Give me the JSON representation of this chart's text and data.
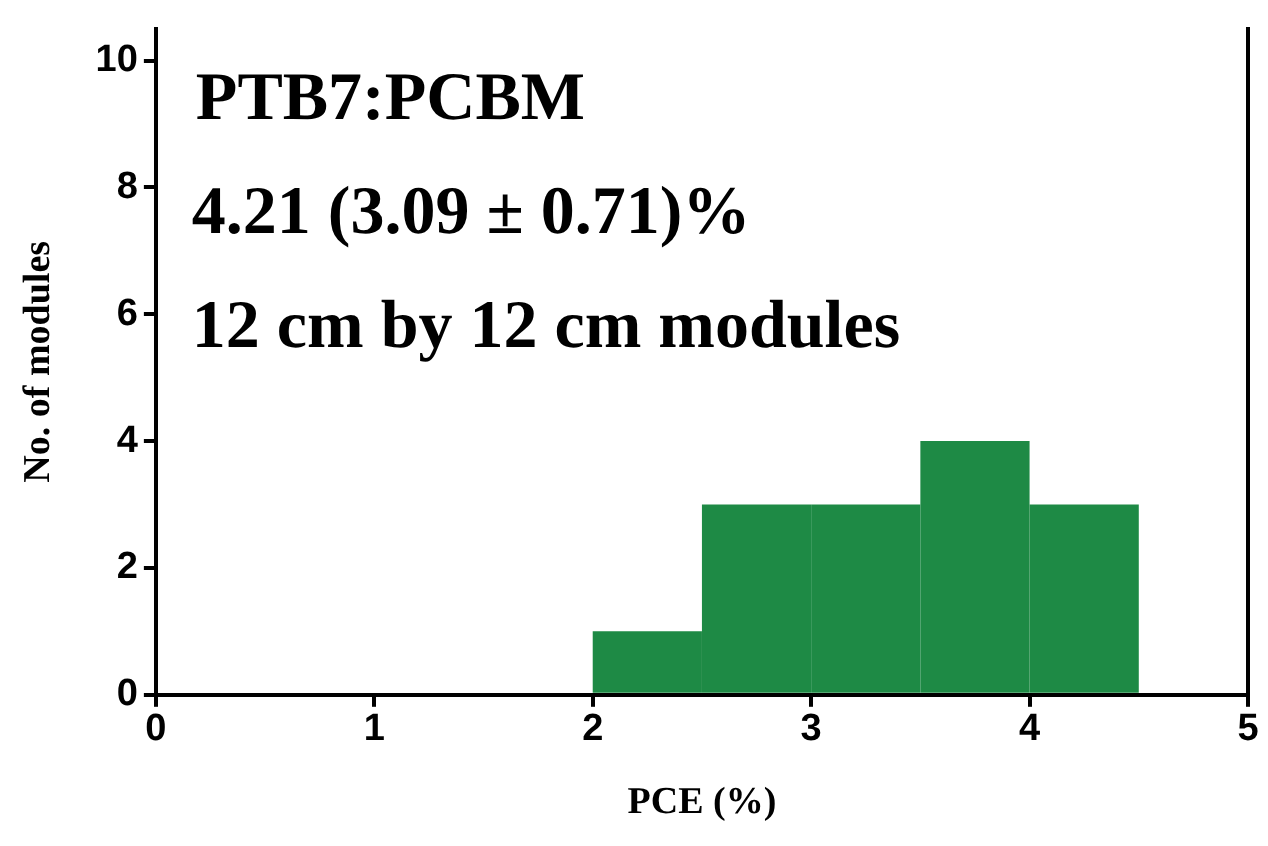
{
  "chart_data": {
    "type": "histogram",
    "xlabel": "PCE (%)",
    "ylabel": "No. of modules",
    "bins": [
      2,
      2.5,
      3,
      3.5,
      4,
      4.5
    ],
    "values": [
      1,
      3,
      3,
      4,
      3
    ],
    "color": "#1e8a45",
    "xlim": [
      0,
      5
    ],
    "xticks": [
      0,
      1,
      2,
      3,
      4,
      5
    ],
    "ylim": [
      0,
      10.5
    ],
    "yticks": [
      0,
      2,
      4,
      6,
      8,
      10
    ],
    "grid": false,
    "annotations": [
      "PTB7:PCBM",
      "4.21 (3.09 ± 0.71)%",
      "12 cm by 12 cm modules"
    ]
  }
}
